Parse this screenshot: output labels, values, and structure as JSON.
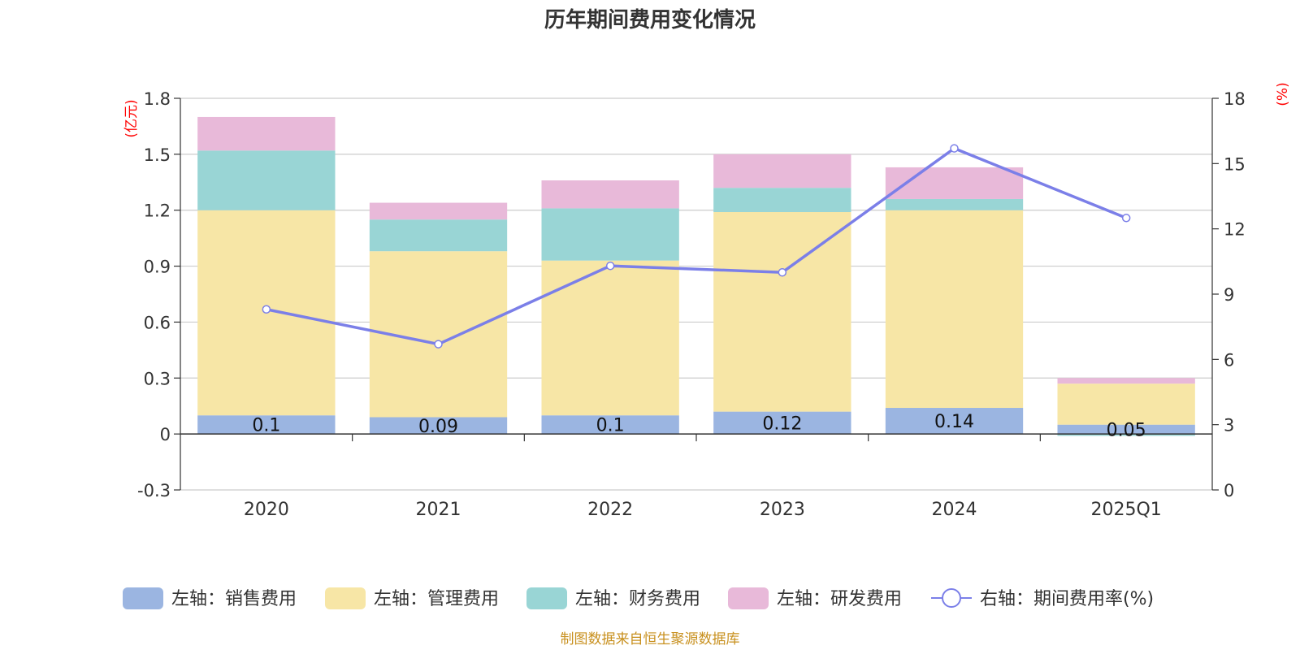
{
  "chart_data": {
    "type": "bar",
    "stacked": true,
    "title": "历年期间费用变化情况",
    "categories": [
      "2020",
      "2021",
      "2022",
      "2023",
      "2024",
      "2025Q1"
    ],
    "left_axis": {
      "unit_label": "(亿元)",
      "ylim": [
        -0.3,
        1.8
      ],
      "ticks": [
        "1.8",
        "1.5",
        "1.2",
        "0.9",
        "0.6",
        "0.3",
        "0",
        "-0.3"
      ]
    },
    "right_axis": {
      "unit_label": "(%)",
      "ylim": [
        0,
        18
      ],
      "ticks": [
        "18",
        "15",
        "12",
        "9",
        "6",
        "3",
        "0"
      ]
    },
    "series": [
      {
        "name": "左轴：销售费用",
        "axis": "left",
        "color": "#9bb5e1",
        "values": [
          0.1,
          0.09,
          0.1,
          0.12,
          0.14,
          0.05
        ]
      },
      {
        "name": "左轴：管理费用",
        "axis": "left",
        "color": "#f7e6a6",
        "values": [
          1.1,
          0.89,
          0.83,
          1.07,
          1.06,
          0.22
        ]
      },
      {
        "name": "左轴：财务费用",
        "axis": "left",
        "color": "#99d5d5",
        "values": [
          0.32,
          0.17,
          0.28,
          0.13,
          0.06,
          -0.01
        ]
      },
      {
        "name": "左轴：研发费用",
        "axis": "left",
        "color": "#e8b9d9",
        "values": [
          0.18,
          0.09,
          0.15,
          0.18,
          0.17,
          0.03
        ]
      },
      {
        "name": "右轴：期间费用率(%)",
        "axis": "right",
        "type": "line",
        "color": "#7b7fe8",
        "values": [
          8.3,
          6.7,
          10.3,
          10.0,
          15.7,
          12.5
        ]
      }
    ],
    "data_labels": [
      "0.1",
      "0.09",
      "0.1",
      "0.12",
      "0.14",
      "0.05"
    ],
    "grid": true,
    "legend_position": "bottom"
  },
  "source": "制图数据来自恒生聚源数据库"
}
